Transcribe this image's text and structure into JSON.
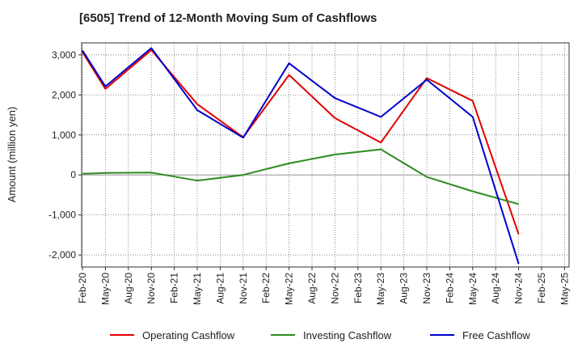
{
  "chart_data": {
    "type": "line",
    "title": "[6505]  Trend of 12-Month Moving Sum of Cashflows",
    "ylabel": "Amount (million yen)",
    "xlabel": "",
    "ylim": [
      -2300,
      3300
    ],
    "yticks": [
      3000,
      2000,
      1000,
      0,
      -1000,
      -2000
    ],
    "ytick_labels": [
      "3,000",
      "2,000",
      "1,000",
      "0",
      "-1,000",
      "-2,000"
    ],
    "categories": [
      "Feb-20",
      "May-20",
      "Aug-20",
      "Nov-20",
      "Feb-21",
      "May-21",
      "Aug-21",
      "Nov-21",
      "Feb-22",
      "May-22",
      "Aug-22",
      "Nov-22",
      "Feb-23",
      "May-23",
      "Aug-23",
      "Nov-23",
      "Feb-24",
      "May-24",
      "Aug-24",
      "Nov-24",
      "Feb-25",
      "May-25"
    ],
    "grid": true,
    "legend_position": "bottom",
    "series": [
      {
        "name": "Operating Cashflow",
        "color": "#e00000",
        "values": [
          3070,
          2150,
          null,
          3120,
          null,
          1770,
          null,
          940,
          null,
          2500,
          null,
          1420,
          null,
          810,
          null,
          2420,
          null,
          1850,
          null,
          -1480,
          null,
          null
        ]
      },
      {
        "name": "Investing Cashflow",
        "color": "#2e8b20",
        "values": [
          30,
          50,
          null,
          60,
          null,
          -140,
          null,
          0,
          null,
          290,
          null,
          510,
          null,
          640,
          null,
          -50,
          null,
          -410,
          null,
          -730,
          null,
          null
        ]
      },
      {
        "name": "Free Cashflow",
        "color": "#0000cc",
        "values": [
          3110,
          2210,
          null,
          3170,
          null,
          1620,
          null,
          930,
          null,
          2790,
          null,
          1920,
          null,
          1450,
          null,
          2380,
          null,
          1450,
          null,
          -2220,
          null,
          null
        ]
      }
    ]
  }
}
